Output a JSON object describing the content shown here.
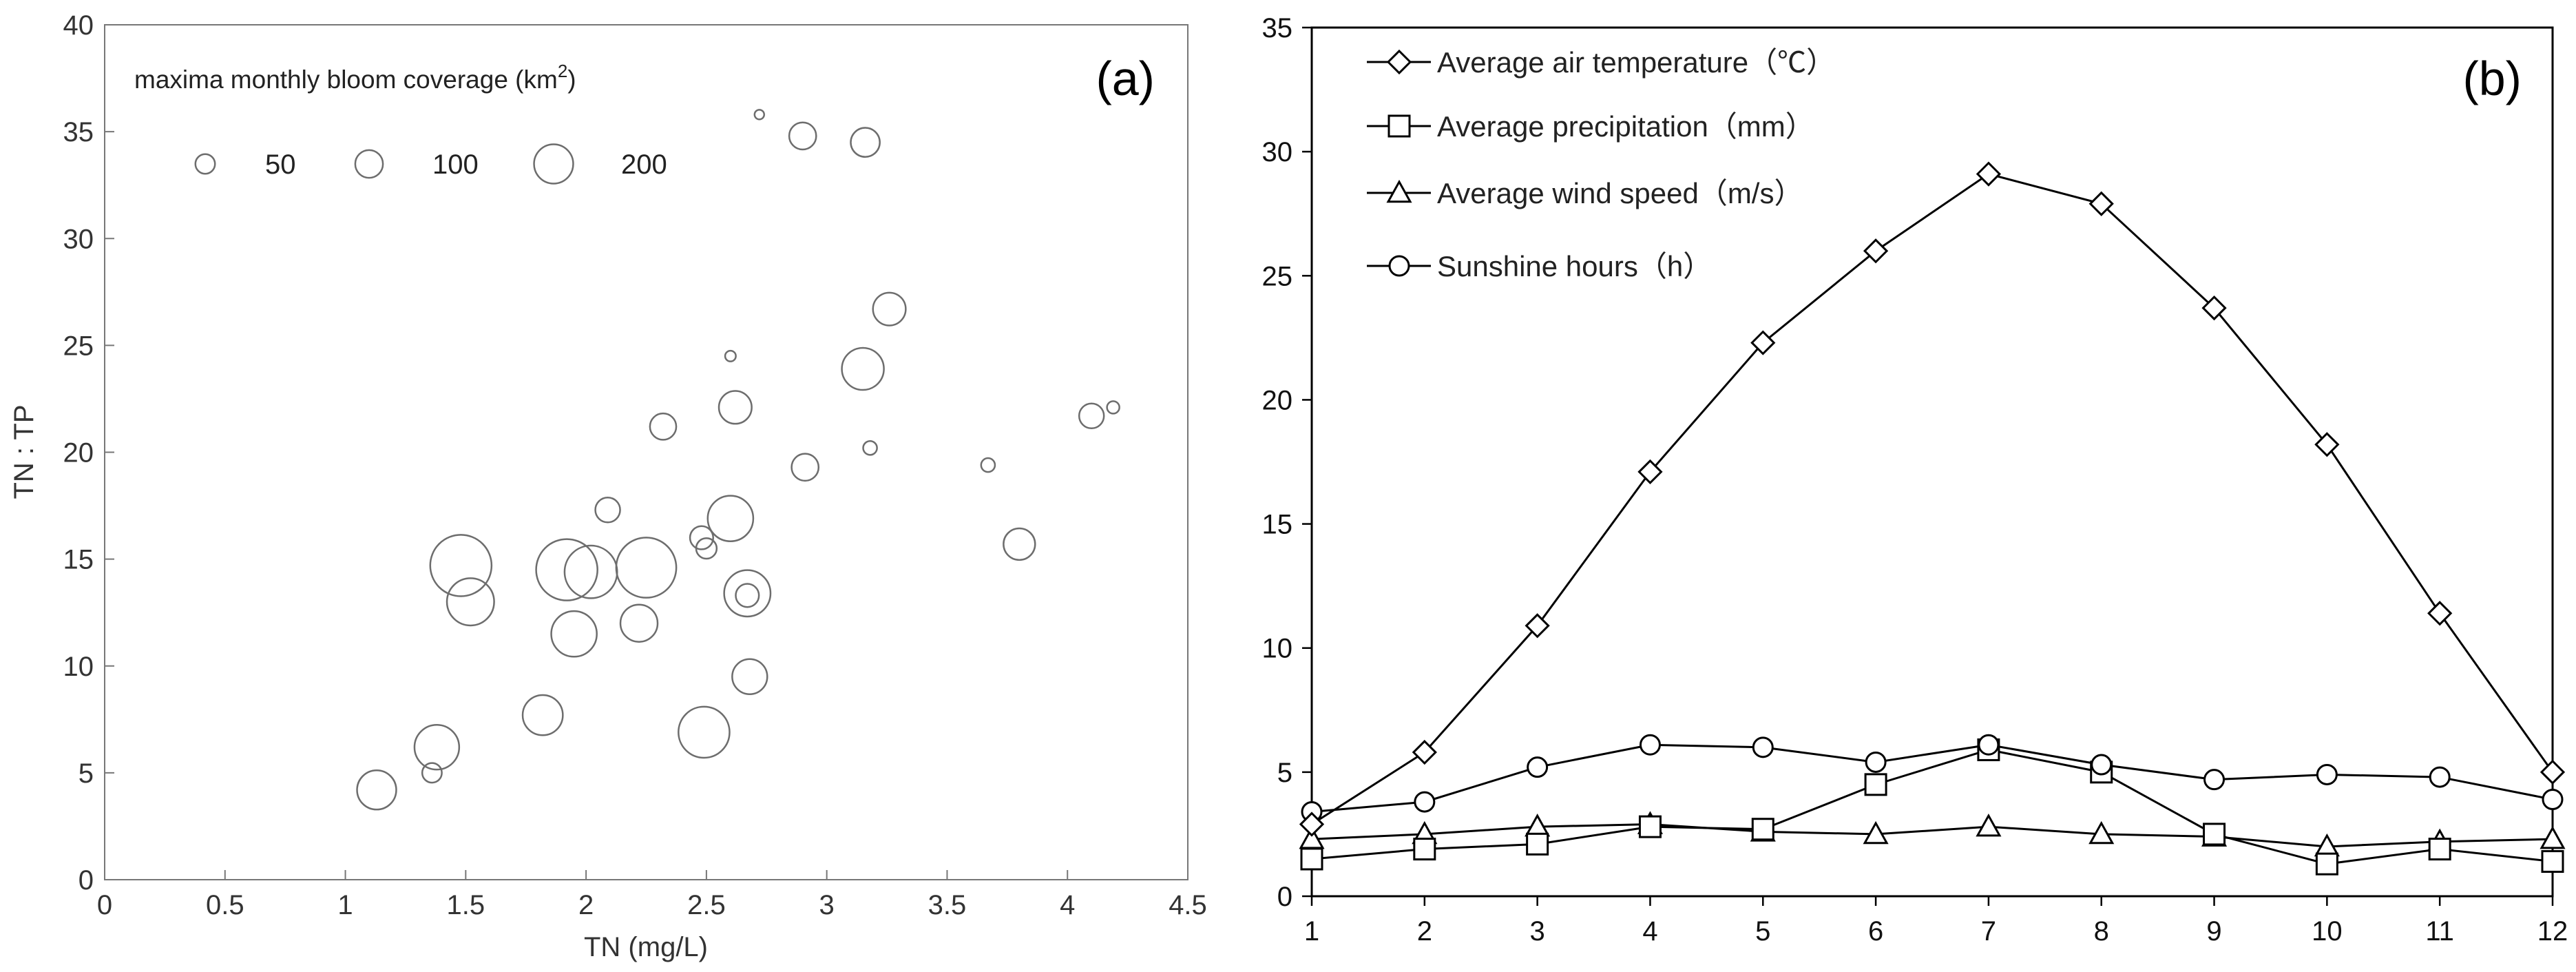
{
  "chart_data": [
    {
      "type": "scatter",
      "panel_label": "(a)",
      "xlabel": "TN (mg/L)",
      "ylabel": "TN : TP",
      "xlim": [
        0,
        4.5
      ],
      "ylim": [
        0,
        40
      ],
      "xticks": [
        "0",
        "0.5",
        "1",
        "1.5",
        "2",
        "2.5",
        "3",
        "3.5",
        "4",
        "4.5"
      ],
      "yticks": [
        "0",
        "5",
        "10",
        "15",
        "20",
        "25",
        "30",
        "35",
        "40"
      ],
      "size_legend": {
        "title_prefix": "maxima monthly bloom coverage (km",
        "title_sup": "2",
        "title_suffix": ")",
        "labels": [
          "50",
          "100",
          "200"
        ],
        "values": [
          50,
          100,
          200
        ]
      },
      "points": [
        {
          "x": 1.13,
          "y": 4.2,
          "size": 200
        },
        {
          "x": 1.36,
          "y": 5.0,
          "size": 50
        },
        {
          "x": 1.38,
          "y": 6.2,
          "size": 260
        },
        {
          "x": 1.48,
          "y": 14.7,
          "size": 490
        },
        {
          "x": 1.52,
          "y": 13.0,
          "size": 290
        },
        {
          "x": 1.82,
          "y": 7.7,
          "size": 210
        },
        {
          "x": 1.92,
          "y": 14.5,
          "size": 490
        },
        {
          "x": 1.95,
          "y": 11.5,
          "size": 270
        },
        {
          "x": 2.02,
          "y": 14.4,
          "size": 360
        },
        {
          "x": 2.09,
          "y": 17.3,
          "size": 80
        },
        {
          "x": 2.22,
          "y": 12.0,
          "size": 180
        },
        {
          "x": 2.25,
          "y": 14.6,
          "size": 470
        },
        {
          "x": 2.32,
          "y": 21.2,
          "size": 90
        },
        {
          "x": 2.48,
          "y": 16.0,
          "size": 70
        },
        {
          "x": 2.5,
          "y": 15.5,
          "size": 55
        },
        {
          "x": 2.49,
          "y": 6.9,
          "size": 340
        },
        {
          "x": 2.6,
          "y": 16.9,
          "size": 270
        },
        {
          "x": 2.6,
          "y": 24.5,
          "size": 15
        },
        {
          "x": 2.62,
          "y": 22.1,
          "size": 140
        },
        {
          "x": 2.67,
          "y": 13.4,
          "size": 280
        },
        {
          "x": 2.67,
          "y": 13.3,
          "size": 70
        },
        {
          "x": 2.68,
          "y": 9.5,
          "size": 160
        },
        {
          "x": 2.72,
          "y": 35.8,
          "size": 12
        },
        {
          "x": 2.9,
          "y": 34.8,
          "size": 95
        },
        {
          "x": 2.91,
          "y": 19.3,
          "size": 95
        },
        {
          "x": 3.15,
          "y": 23.9,
          "size": 230
        },
        {
          "x": 3.16,
          "y": 34.5,
          "size": 110
        },
        {
          "x": 3.18,
          "y": 20.2,
          "size": 25
        },
        {
          "x": 3.26,
          "y": 26.7,
          "size": 140
        },
        {
          "x": 3.67,
          "y": 19.4,
          "size": 25
        },
        {
          "x": 3.8,
          "y": 15.7,
          "size": 130
        },
        {
          "x": 4.1,
          "y": 21.7,
          "size": 80
        },
        {
          "x": 4.19,
          "y": 22.1,
          "size": 20
        }
      ]
    },
    {
      "type": "line",
      "panel_label": "(b)",
      "xlim": [
        1,
        12
      ],
      "ylim": [
        0,
        35
      ],
      "x": [
        1,
        2,
        3,
        4,
        5,
        6,
        7,
        8,
        9,
        10,
        11,
        12
      ],
      "xticks": [
        "1",
        "2",
        "3",
        "4",
        "5",
        "6",
        "7",
        "8",
        "9",
        "10",
        "11",
        "12"
      ],
      "yticks": [
        "0",
        "5",
        "10",
        "15",
        "20",
        "25",
        "30",
        "35"
      ],
      "series": [
        {
          "name": "Average air temperature（℃）",
          "marker": "diamond",
          "values": [
            2.9,
            5.8,
            10.9,
            17.1,
            22.3,
            26.0,
            29.1,
            27.9,
            23.7,
            18.2,
            11.4,
            5.0
          ]
        },
        {
          "name": "Average precipitation（mm）",
          "marker": "square",
          "values": [
            1.5,
            1.9,
            2.1,
            2.8,
            2.7,
            4.5,
            5.9,
            5.0,
            2.5,
            1.3,
            1.9,
            1.4
          ]
        },
        {
          "name": "Average wind speed（m/s）",
          "marker": "triangle",
          "values": [
            2.3,
            2.5,
            2.8,
            2.9,
            2.6,
            2.5,
            2.8,
            2.5,
            2.4,
            2.0,
            2.2,
            2.3
          ]
        },
        {
          "name": "Sunshine hours（h）",
          "marker": "circle",
          "values": [
            3.4,
            3.8,
            5.2,
            6.1,
            6.0,
            5.4,
            6.1,
            5.3,
            4.7,
            4.9,
            4.8,
            3.9
          ]
        }
      ]
    }
  ]
}
